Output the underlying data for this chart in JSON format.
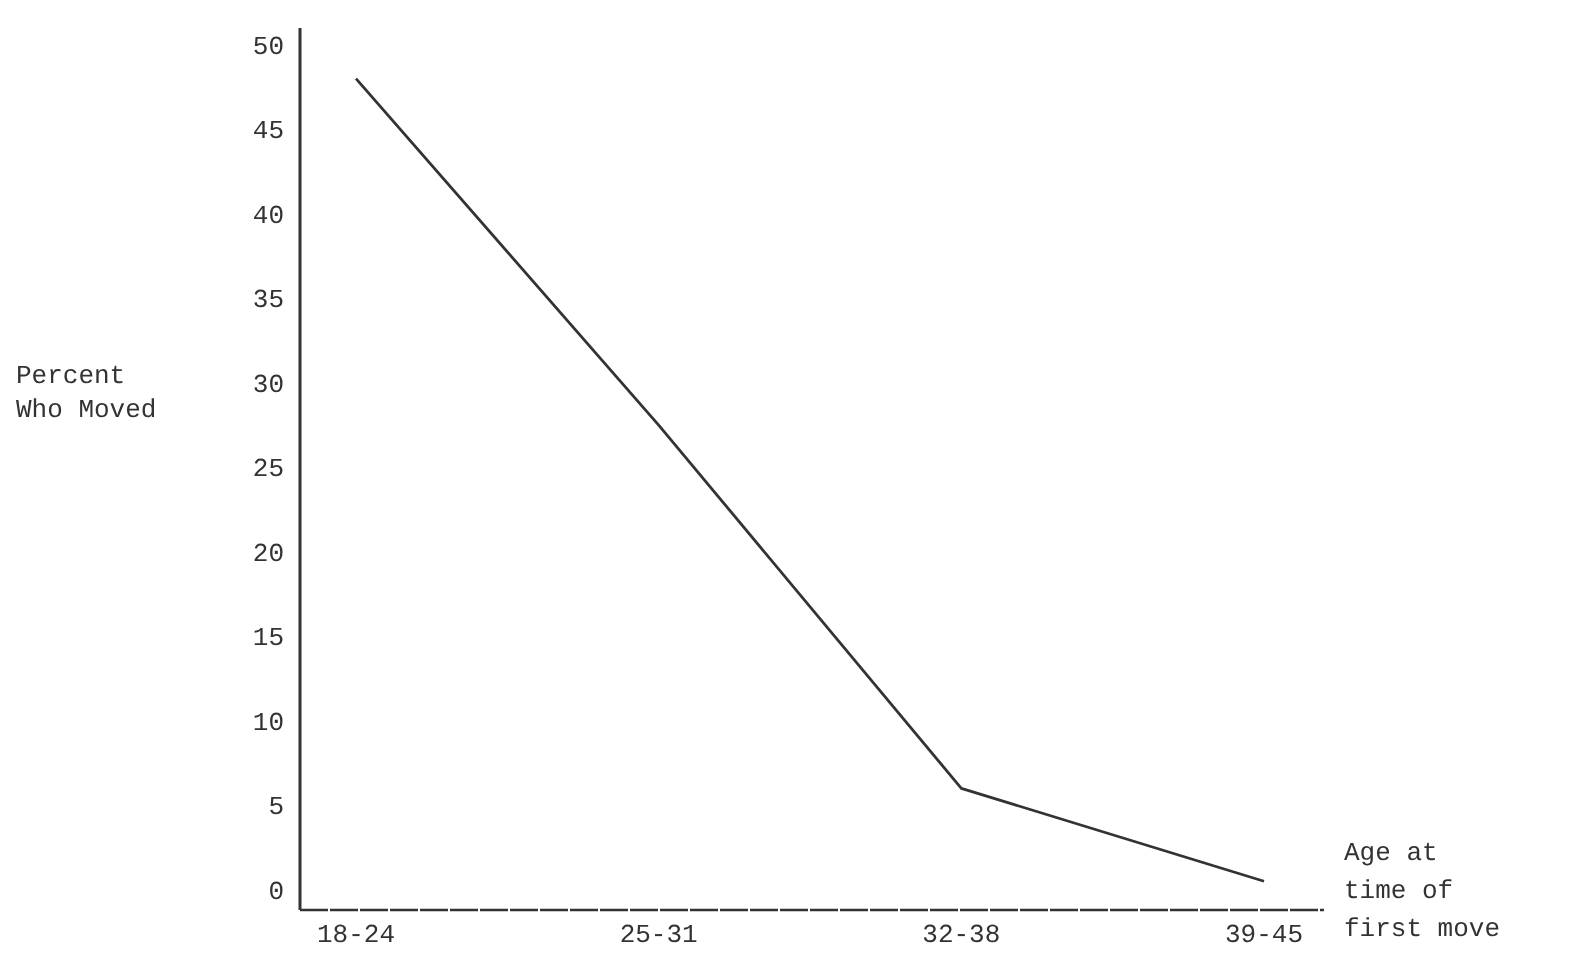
{
  "chart_data": {
    "type": "line",
    "ylabel": "Percent Who Moved",
    "xlabel": "Age at time of first move",
    "categories": [
      "18-24",
      "25-31",
      "32-38",
      "39-45"
    ],
    "series": [
      {
        "color": "#333333",
        "values": [
          48,
          27.5,
          6,
          0.5
        ]
      }
    ],
    "ylim": [
      -1.2,
      51
    ],
    "yticks": [
      0,
      5,
      10,
      15,
      20,
      25,
      30,
      35,
      40,
      45,
      50
    ],
    "marker": "none",
    "line_style": "solid",
    "grid": false
  }
}
